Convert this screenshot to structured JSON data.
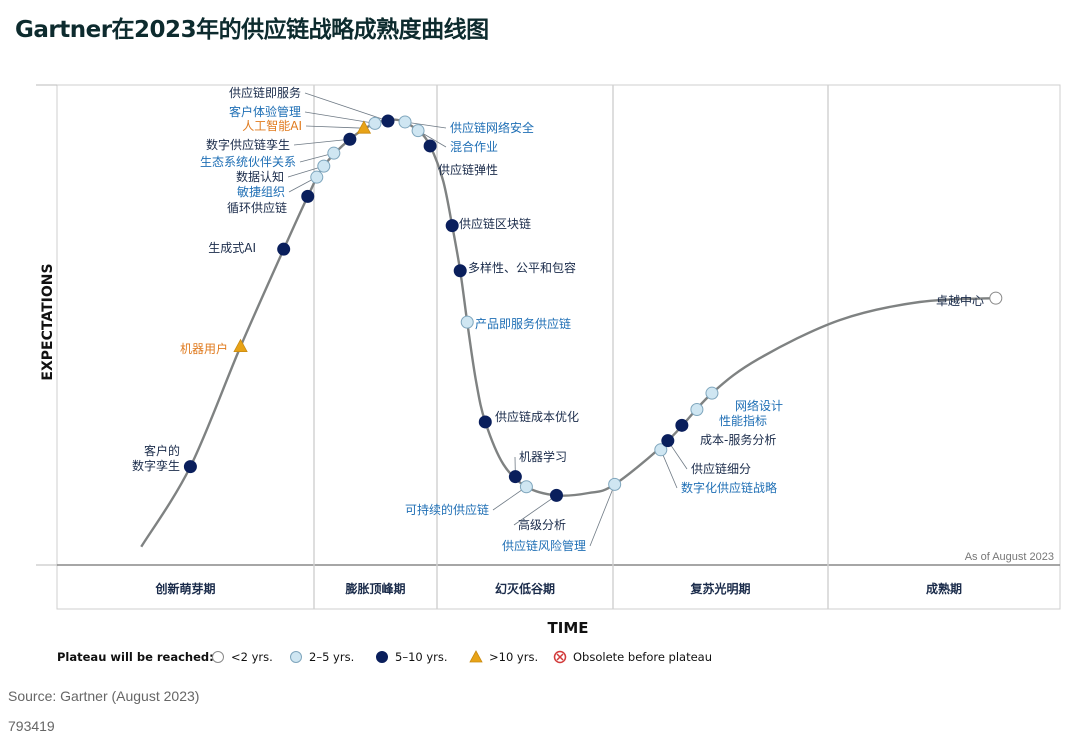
{
  "title": "Gartner在2023年的供应链战略成熟度曲线图",
  "chart_data": {
    "type": "hype-cycle",
    "xlabel": "TIME",
    "ylabel": "EXPECTATIONS",
    "as_of": "As of August 2023",
    "phases": [
      "创新萌芽期",
      "膨胀顶峰期",
      "幻灭低谷期",
      "复苏光明期",
      "成熟期"
    ],
    "legend": {
      "label": "Plateau will be reached:",
      "items": [
        {
          "key": "lt2",
          "label": "<2 yrs."
        },
        {
          "key": "2to5",
          "label": "2–5 yrs."
        },
        {
          "key": "5to10",
          "label": "5–10 yrs."
        },
        {
          "key": "gt10",
          "label": ">10 yrs."
        },
        {
          "key": "obsolete",
          "label": "Obsolete before plateau"
        }
      ]
    },
    "colors": {
      "lt2": "#ffffff",
      "2to5": "#cfe6f2",
      "5to10": "#0a1f5c",
      "gt10": "#e8a317",
      "obsolete": "#d23a3a",
      "curve": "#7f8282",
      "text_dark": "#1a2b4a",
      "text_blue": "#1f6fb5",
      "text_orange": "#e07b1f"
    },
    "points": [
      {
        "label": "客户的\n数字孪生",
        "time": 0.133,
        "expectation": 0.205,
        "plateau": "5to10",
        "phase": "创新萌芽期"
      },
      {
        "label": "机器用户",
        "time": 0.183,
        "expectation": 0.455,
        "plateau": "gt10",
        "phase": "创新萌芽期"
      },
      {
        "label": "生成式AI",
        "time": 0.226,
        "expectation": 0.658,
        "plateau": "5to10",
        "phase": "创新萌芽期"
      },
      {
        "label": "循环供应链",
        "time": 0.25,
        "expectation": 0.768,
        "plateau": "5to10",
        "phase": "创新萌芽期"
      },
      {
        "label": "敏捷组织",
        "time": 0.259,
        "expectation": 0.808,
        "plateau": "2to5",
        "phase": "膨胀顶峰期"
      },
      {
        "label": "数据认知",
        "time": 0.266,
        "expectation": 0.831,
        "plateau": "2to5",
        "phase": "膨胀顶峰期"
      },
      {
        "label": "生态系统伙伴关系",
        "time": 0.276,
        "expectation": 0.858,
        "plateau": "2to5",
        "phase": "膨胀顶峰期"
      },
      {
        "label": "数字供应链孪生",
        "time": 0.292,
        "expectation": 0.887,
        "plateau": "5to10",
        "phase": "膨胀顶峰期"
      },
      {
        "label": "人工智能AI",
        "time": 0.306,
        "expectation": 0.91,
        "plateau": "gt10",
        "phase": "膨胀顶峰期"
      },
      {
        "label": "客户体验管理",
        "time": 0.317,
        "expectation": 0.92,
        "plateau": "2to5",
        "phase": "膨胀顶峰期"
      },
      {
        "label": "供应链即服务",
        "time": 0.33,
        "expectation": 0.925,
        "plateau": "5to10",
        "phase": "膨胀顶峰期"
      },
      {
        "label": "供应链网络安全",
        "time": 0.347,
        "expectation": 0.923,
        "plateau": "2to5",
        "phase": "膨胀顶峰期"
      },
      {
        "label": "混合作业",
        "time": 0.36,
        "expectation": 0.905,
        "plateau": "2to5",
        "phase": "膨胀顶峰期"
      },
      {
        "label": "供应链弹性",
        "time": 0.372,
        "expectation": 0.873,
        "plateau": "5to10",
        "phase": "膨胀顶峰期"
      },
      {
        "label": "供应链区块链",
        "time": 0.394,
        "expectation": 0.707,
        "plateau": "5to10",
        "phase": "幻灭低谷期"
      },
      {
        "label": "多样性、公平和包容",
        "time": 0.402,
        "expectation": 0.613,
        "plateau": "5to10",
        "phase": "幻灭低谷期"
      },
      {
        "label": "产品即服务供应链",
        "time": 0.409,
        "expectation": 0.506,
        "plateau": "2to5",
        "phase": "幻灭低谷期"
      },
      {
        "label": "供应链成本优化",
        "time": 0.427,
        "expectation": 0.298,
        "plateau": "5to10",
        "phase": "幻灭低谷期"
      },
      {
        "label": "机器学习",
        "time": 0.457,
        "expectation": 0.184,
        "plateau": "5to10",
        "phase": "幻灭低谷期"
      },
      {
        "label": "可持续的供应链",
        "time": 0.468,
        "expectation": 0.163,
        "plateau": "2to5",
        "phase": "幻灭低谷期"
      },
      {
        "label": "高级分析",
        "time": 0.498,
        "expectation": 0.145,
        "plateau": "5to10",
        "phase": "幻灭低谷期"
      },
      {
        "label": "供应链风险管理",
        "time": 0.556,
        "expectation": 0.168,
        "plateau": "2to5",
        "phase": "幻灭低谷期"
      },
      {
        "label": "数字化供应链战略",
        "time": 0.602,
        "expectation": 0.24,
        "plateau": "2to5",
        "phase": "复苏光明期"
      },
      {
        "label": "供应链细分",
        "time": 0.609,
        "expectation": 0.259,
        "plateau": "5to10",
        "phase": "复苏光明期"
      },
      {
        "label": "成本-服务分析",
        "time": 0.623,
        "expectation": 0.291,
        "plateau": "5to10",
        "phase": "复苏光明期"
      },
      {
        "label": "性能指标",
        "time": 0.638,
        "expectation": 0.324,
        "plateau": "2to5",
        "phase": "复苏光明期"
      },
      {
        "label": "网络设计",
        "time": 0.653,
        "expectation": 0.358,
        "plateau": "2to5",
        "phase": "复苏光明期"
      },
      {
        "label": "卓越中心",
        "time": 0.936,
        "expectation": 0.556,
        "plateau": "lt2",
        "phase": "成熟期"
      }
    ]
  },
  "source": "Source: Gartner (August 2023)",
  "doc_id": "793419"
}
